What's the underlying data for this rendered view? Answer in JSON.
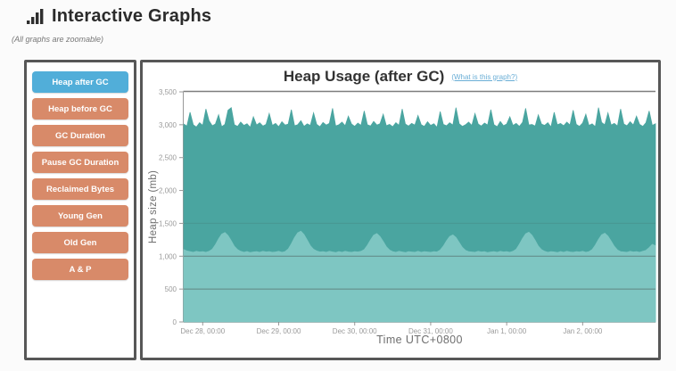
{
  "header": {
    "title": "Interactive Graphs",
    "subtitle": "(All graphs are zoomable)",
    "icon": "bar-chart-icon"
  },
  "sidebar": {
    "buttons": [
      {
        "label": "Heap after GC",
        "active": true
      },
      {
        "label": "Heap before GC",
        "active": false
      },
      {
        "label": "GC Duration",
        "active": false
      },
      {
        "label": "Pause GC Duration",
        "active": false
      },
      {
        "label": "Reclaimed Bytes",
        "active": false
      },
      {
        "label": "Young Gen",
        "active": false
      },
      {
        "label": "Old Gen",
        "active": false
      },
      {
        "label": "A & P",
        "active": false
      }
    ]
  },
  "chart": {
    "help_link_label": "(What is this graph?)"
  },
  "colors": {
    "active_button": "#51aed9",
    "button": "#d88a69",
    "series_dark": "#4aa5a0",
    "series_light": "#7ec6c2",
    "panel_border": "#575757",
    "link": "#6aaed6",
    "axis_text": "#9a9a9a"
  },
  "chart_data": {
    "type": "area",
    "title": "Heap Usage (after GC)",
    "xlabel": "Time UTC+0800",
    "ylabel": "Heap size (mb)",
    "ylim": [
      0,
      3500
    ],
    "yticks": [
      "0",
      "500",
      "1,000",
      "1,500",
      "2,000",
      "2,500",
      "3,000",
      "3,500"
    ],
    "grid": "horizontal gridlines at 500 and 1,000",
    "legend": "none",
    "x_range_hours": [
      -6,
      143
    ],
    "x_start_hour": -6,
    "x_step_hours": 1,
    "xtick_hours": [
      0,
      24,
      48,
      72,
      96,
      120
    ],
    "xtick_labels": [
      "Dec 28, 00:00",
      "Dec 29, 00:00",
      "Dec 30, 00:00",
      "Dec 31, 00:00",
      "Jan 1, 00:00",
      "Jan 2, 00:00"
    ],
    "series": [
      {
        "name": "heap-after-gc-upper",
        "color": "#4aa5a0",
        "values": [
          3010,
          2980,
          3190,
          3000,
          2965,
          3030,
          2990,
          3240,
          3060,
          2985,
          3010,
          3150,
          2970,
          3005,
          3220,
          3260,
          3000,
          2975,
          3040,
          2990,
          3015,
          2960,
          3120,
          2995,
          3030,
          2980,
          3005,
          3170,
          2990,
          3020,
          2970,
          3045,
          2995,
          3010,
          3230,
          2985,
          3000,
          3060,
          2975,
          3015,
          2990,
          3180,
          3005,
          2970,
          3035,
          2995,
          3020,
          3250,
          2980,
          3000,
          3040,
          2985,
          3130,
          3010,
          2975,
          3025,
          2990,
          3210,
          3000,
          2980,
          3050,
          2995,
          3015,
          3160,
          2985,
          3005,
          2970,
          3030,
          2990,
          3240,
          3010,
          2980,
          3020,
          2995,
          3140,
          3000,
          2975,
          3045,
          2990,
          3015,
          2960,
          3200,
          3005,
          2985,
          3030,
          2995,
          3260,
          3015,
          2975,
          3000,
          3040,
          2990,
          3170,
          3010,
          2980,
          3025,
          2995,
          3230,
          3000,
          2970,
          3050,
          2985,
          3010,
          3120,
          2990,
          3020,
          2975,
          3035,
          3250,
          2995,
          3005,
          2980,
          3150,
          3010,
          2990,
          3030,
          2965,
          3190,
          3000,
          3020,
          2985,
          3040,
          2995,
          3220,
          3005,
          2975,
          3025,
          3160,
          2990,
          3015,
          2970,
          3260,
          3035,
          3000,
          3180,
          2995,
          3020,
          2980,
          3240,
          3010,
          2985,
          3045,
          2995,
          3130,
          3005,
          2975,
          3030,
          3210,
          2990,
          3015
        ]
      },
      {
        "name": "heap-after-gc-lower",
        "color": "#7ec6c2",
        "values": [
          1100,
          1080,
          1070,
          1060,
          1075,
          1065,
          1070,
          1060,
          1075,
          1105,
          1175,
          1265,
          1335,
          1360,
          1315,
          1235,
          1150,
          1100,
          1075,
          1060,
          1070,
          1055,
          1065,
          1070,
          1060,
          1075,
          1065,
          1070,
          1060,
          1065,
          1075,
          1060,
          1070,
          1110,
          1190,
          1285,
          1355,
          1380,
          1330,
          1245,
          1160,
          1105,
          1080,
          1065,
          1070,
          1060,
          1075,
          1065,
          1055,
          1070,
          1060,
          1075,
          1065,
          1060,
          1070,
          1065,
          1075,
          1100,
          1165,
          1250,
          1320,
          1345,
          1300,
          1225,
          1145,
          1095,
          1070,
          1060,
          1075,
          1065,
          1055,
          1070,
          1065,
          1060,
          1075,
          1060,
          1070,
          1065,
          1060,
          1070,
          1065,
          1095,
          1155,
          1235,
          1300,
          1325,
          1285,
          1210,
          1135,
          1090,
          1070,
          1065,
          1060,
          1075,
          1065,
          1070,
          1055,
          1065,
          1070,
          1060,
          1075,
          1065,
          1070,
          1060,
          1075,
          1105,
          1180,
          1270,
          1340,
          1365,
          1320,
          1240,
          1155,
          1100,
          1075,
          1060,
          1070,
          1065,
          1055,
          1070,
          1060,
          1075,
          1065,
          1060,
          1070,
          1065,
          1075,
          1060,
          1070,
          1100,
          1170,
          1255,
          1325,
          1350,
          1305,
          1230,
          1150,
          1095,
          1070,
          1065,
          1060,
          1075,
          1065,
          1070,
          1060,
          1075,
          1090,
          1130,
          1180,
          1160
        ]
      }
    ]
  }
}
